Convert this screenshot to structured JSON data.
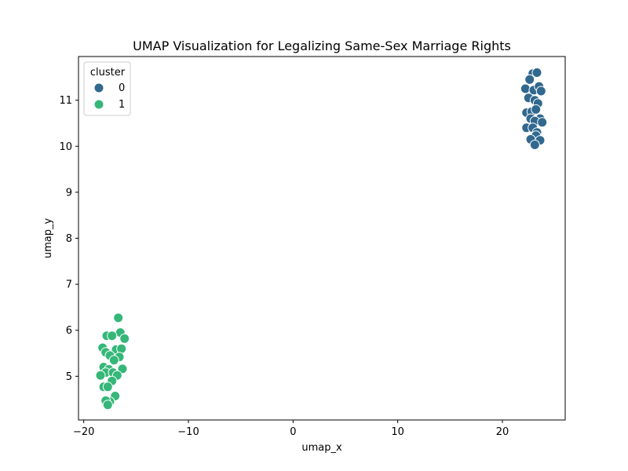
{
  "chart_data": {
    "type": "scatter",
    "title": "UMAP Visualization for Legalizing Same-Sex Marriage Rights",
    "xlabel": "umap_x",
    "ylabel": "umap_y",
    "xlim": [
      -20.5,
      26
    ],
    "ylim": [
      4.05,
      11.95
    ],
    "xticks": [
      -20,
      -10,
      0,
      10,
      20
    ],
    "xtick_labels": [
      "−20",
      "−10",
      "0",
      "10",
      "20"
    ],
    "yticks": [
      5,
      6,
      7,
      8,
      9,
      10,
      11
    ],
    "ytick_labels": [
      "5",
      "6",
      "7",
      "8",
      "9",
      "10",
      "11"
    ],
    "grid": false,
    "legend": {
      "title": "cluster",
      "placement": "top-left"
    },
    "series": [
      {
        "name": "0",
        "color": "#31688e",
        "points": [
          [
            22.9,
            11.58
          ],
          [
            23.3,
            11.6
          ],
          [
            22.6,
            11.45
          ],
          [
            22.2,
            11.25
          ],
          [
            23.0,
            11.22
          ],
          [
            23.5,
            11.3
          ],
          [
            23.7,
            11.2
          ],
          [
            22.5,
            11.05
          ],
          [
            23.1,
            11.0
          ],
          [
            23.4,
            10.93
          ],
          [
            22.3,
            10.73
          ],
          [
            22.8,
            10.75
          ],
          [
            23.2,
            10.8
          ],
          [
            23.6,
            10.6
          ],
          [
            22.7,
            10.6
          ],
          [
            23.1,
            10.55
          ],
          [
            23.8,
            10.52
          ],
          [
            22.3,
            10.4
          ],
          [
            22.9,
            10.4
          ],
          [
            23.3,
            10.3
          ],
          [
            23.2,
            10.23
          ],
          [
            22.7,
            10.15
          ],
          [
            23.6,
            10.13
          ],
          [
            23.1,
            10.03
          ]
        ]
      },
      {
        "name": "1",
        "color": "#35b779",
        "points": [
          [
            -16.7,
            6.27
          ],
          [
            -16.5,
            5.95
          ],
          [
            -17.8,
            5.88
          ],
          [
            -17.3,
            5.88
          ],
          [
            -16.1,
            5.82
          ],
          [
            -18.2,
            5.62
          ],
          [
            -16.9,
            5.58
          ],
          [
            -16.4,
            5.6
          ],
          [
            -17.9,
            5.52
          ],
          [
            -17.5,
            5.45
          ],
          [
            -16.6,
            5.42
          ],
          [
            -17.1,
            5.35
          ],
          [
            -18.1,
            5.2
          ],
          [
            -17.6,
            5.15
          ],
          [
            -16.3,
            5.16
          ],
          [
            -17.9,
            5.08
          ],
          [
            -17.2,
            5.08
          ],
          [
            -18.4,
            5.02
          ],
          [
            -16.8,
            5.02
          ],
          [
            -17.3,
            4.9
          ],
          [
            -18.1,
            4.77
          ],
          [
            -17.7,
            4.77
          ],
          [
            -17.0,
            4.57
          ],
          [
            -17.5,
            4.45
          ],
          [
            -17.9,
            4.47
          ],
          [
            -17.7,
            4.38
          ]
        ]
      }
    ]
  }
}
